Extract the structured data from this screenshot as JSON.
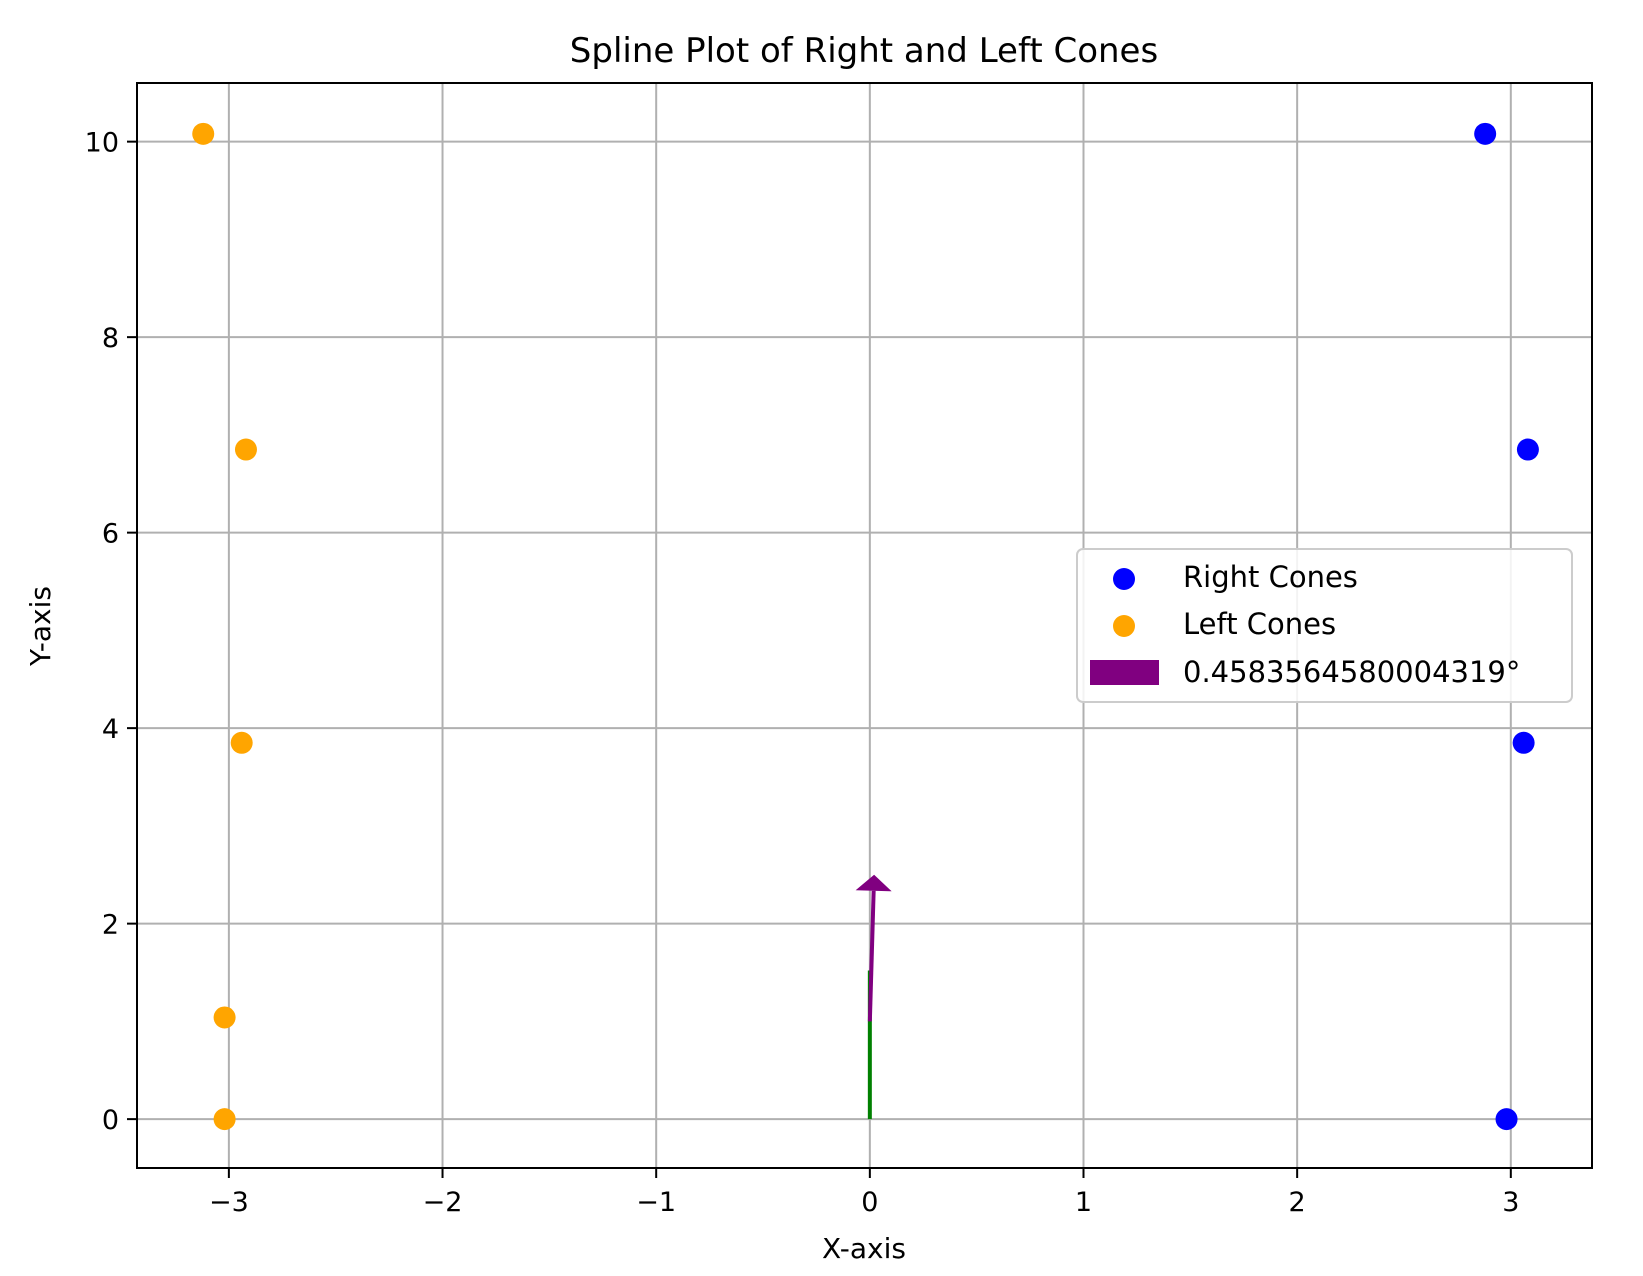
{
  "chart_data": {
    "type": "scatter",
    "title": "Spline Plot of Right and Left Cones",
    "xlabel": "X-axis",
    "ylabel": "Y-axis",
    "xlim": [
      -3.43,
      3.38
    ],
    "ylim": [
      -0.5,
      10.6
    ],
    "xticks": [
      -3,
      -2,
      -1,
      0,
      1,
      2,
      3
    ],
    "yticks": [
      0,
      2,
      4,
      6,
      8,
      10
    ],
    "xtick_labels": [
      "−3",
      "−2",
      "−1",
      "0",
      "1",
      "2",
      "3"
    ],
    "ytick_labels": [
      "0",
      "2",
      "4",
      "6",
      "8",
      "10"
    ],
    "grid": true,
    "legend_position": "center-right",
    "series": [
      {
        "name": "Right Cones",
        "color": "#0000ff",
        "x": [
          2.98,
          3.06,
          3.08,
          2.88
        ],
        "y": [
          0.0,
          3.85,
          6.85,
          10.08
        ]
      },
      {
        "name": "Left Cones",
        "color": "#ffa500",
        "x": [
          -3.02,
          -3.02,
          -2.94,
          -2.92,
          -3.12
        ],
        "y": [
          0.0,
          1.04,
          3.85,
          6.85,
          10.08
        ]
      }
    ],
    "arrow": {
      "name": "0.4583564580004319°",
      "color": "#800080",
      "x_start": 0.0,
      "y_start": 1.0,
      "x_end": 0.02,
      "y_end": 2.5
    },
    "line": {
      "color": "#008000",
      "x": [
        0.0,
        0.0
      ],
      "y": [
        0.0,
        1.52
      ]
    }
  }
}
